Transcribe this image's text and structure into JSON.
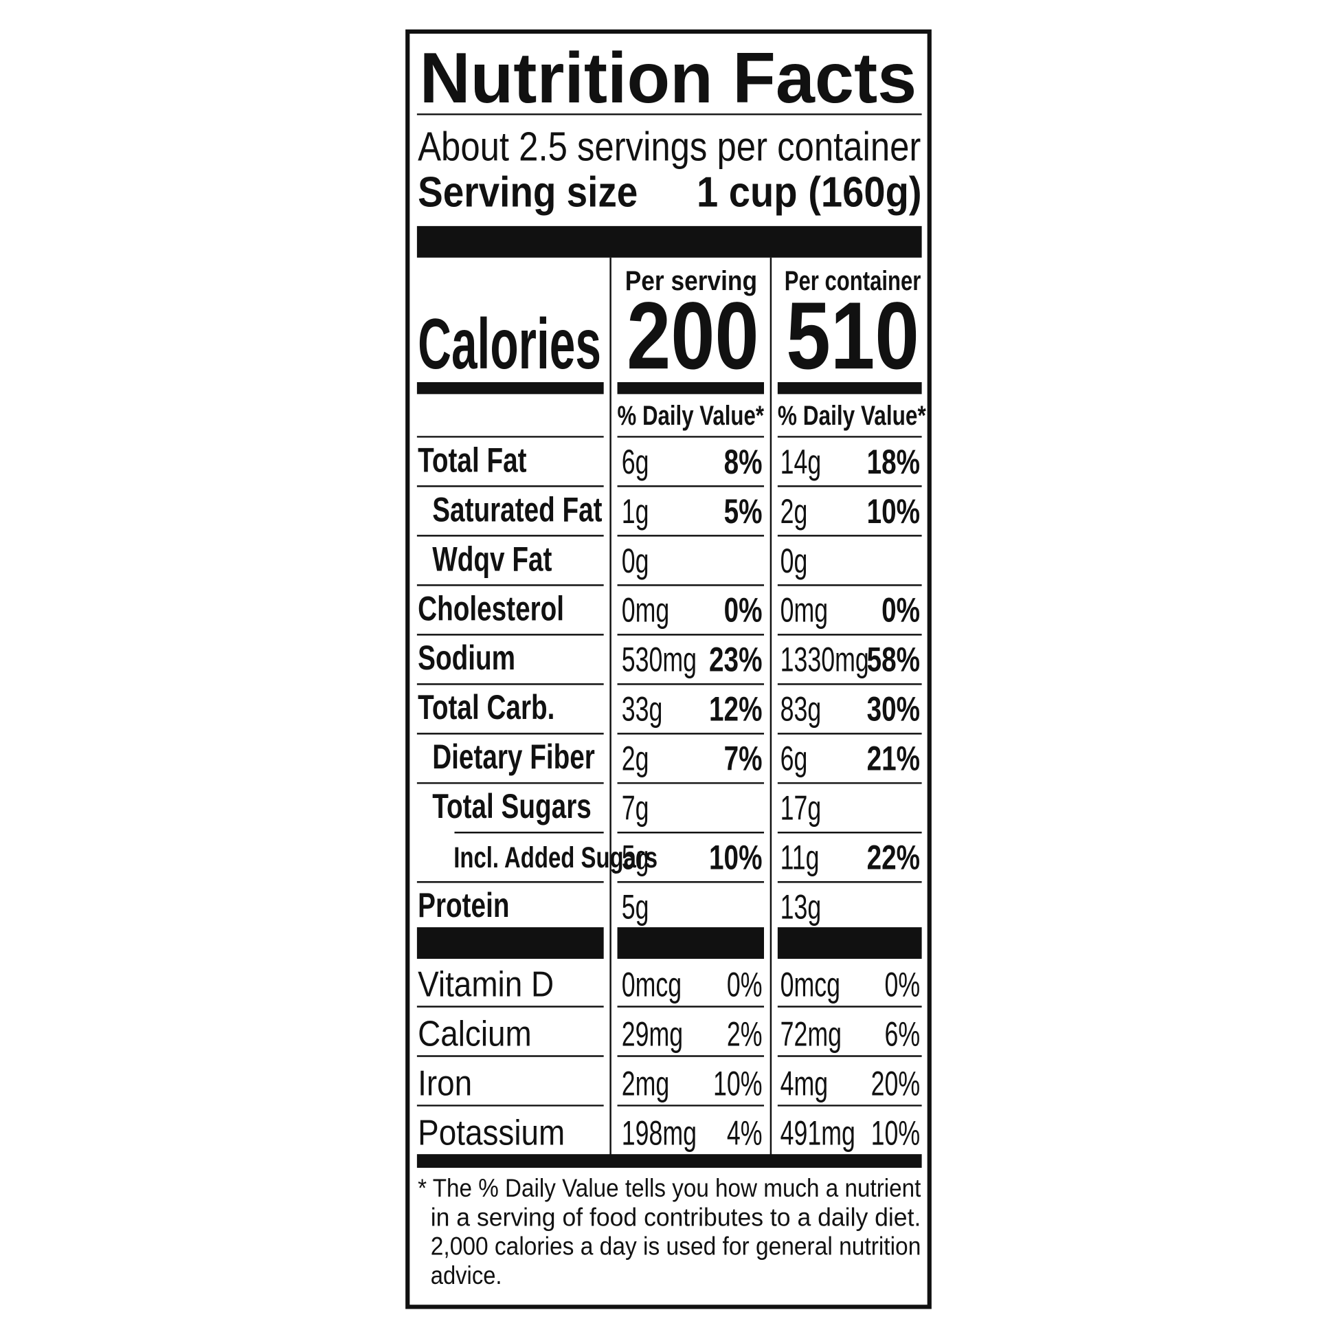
{
  "title": "Nutrition Facts",
  "servings": "About 2.5 servings per container",
  "serving_size": {
    "label": "Serving size",
    "value": "1 cup (160g)"
  },
  "calories": {
    "label": "Calories",
    "columns": [
      {
        "header": "Per serving",
        "value": "200"
      },
      {
        "header": "Per container",
        "value": "510"
      }
    ]
  },
  "dv_headers": [
    "% Daily Value*",
    "% Daily Value*"
  ],
  "nutrients": [
    {
      "name": "Total Fat",
      "per_serving": {
        "amount": "6g",
        "dv": "8%"
      },
      "per_container": {
        "amount": "14g",
        "dv": "18%"
      }
    },
    {
      "name": "Saturated Fat",
      "per_serving": {
        "amount": "1g",
        "dv": "5%"
      },
      "per_container": {
        "amount": "2g",
        "dv": "10%"
      }
    },
    {
      "name": "Wdqv Fat",
      "per_serving": {
        "amount": "0g"
      },
      "per_container": {
        "amount": "0g"
      }
    },
    {
      "name": "Cholesterol",
      "per_serving": {
        "amount": "0mg",
        "dv": "0%"
      },
      "per_container": {
        "amount": "0mg",
        "dv": "0%"
      }
    },
    {
      "name": "Sodium",
      "per_serving": {
        "amount": "530mg",
        "dv": "23%"
      },
      "per_container": {
        "amount": "1330mg",
        "dv": "58%"
      }
    },
    {
      "name": "Total Carb.",
      "per_serving": {
        "amount": "33g",
        "dv": "12%"
      },
      "per_container": {
        "amount": "83g",
        "dv": "30%"
      }
    },
    {
      "name": "Dietary Fiber",
      "per_serving": {
        "amount": "2g",
        "dv": "7%"
      },
      "per_container": {
        "amount": "6g",
        "dv": "21%"
      }
    },
    {
      "name": "Total Sugars",
      "per_serving": {
        "amount": "7g"
      },
      "per_container": {
        "amount": "17g"
      }
    },
    {
      "name": "Incl. Added Sugars",
      "per_serving": {
        "amount": "5g",
        "dv": "10%"
      },
      "per_container": {
        "amount": "11g",
        "dv": "22%"
      }
    },
    {
      "name": "Protein",
      "per_serving": {
        "amount": "5g"
      },
      "per_container": {
        "amount": "13g"
      }
    }
  ],
  "vitamins": [
    {
      "name": "Vitamin D",
      "per_serving": {
        "amount": "0mcg",
        "dv": "0%"
      },
      "per_container": {
        "amount": "0mcg",
        "dv": "0%"
      }
    },
    {
      "name": "Calcium",
      "per_serving": {
        "amount": "29mg",
        "dv": "2%"
      },
      "per_container": {
        "amount": "72mg",
        "dv": "6%"
      }
    },
    {
      "name": "Iron",
      "per_serving": {
        "amount": "2mg",
        "dv": "10%"
      },
      "per_container": {
        "amount": "4mg",
        "dv": "20%"
      }
    },
    {
      "name": "Potassium",
      "per_serving": {
        "amount": "198mg",
        "dv": "4%"
      },
      "per_container": {
        "amount": "491mg",
        "dv": "10%"
      }
    }
  ],
  "footnote": [
    "* The % Daily Value tells you how much a nutrient",
    "in a serving of food contributes to a daily diet.",
    "2,000 calories a day is used for general nutrition",
    "advice."
  ]
}
